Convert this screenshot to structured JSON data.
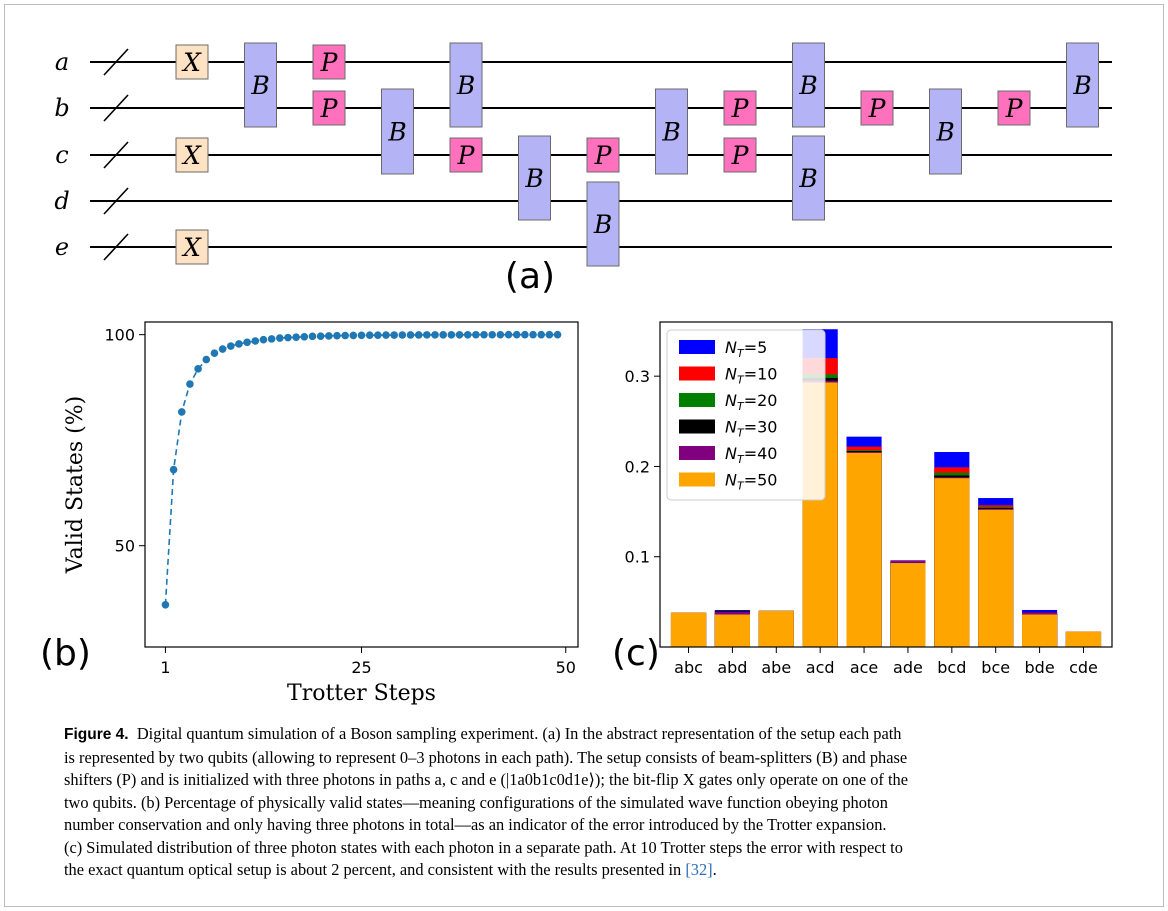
{
  "circuit": {
    "wires": [
      "a",
      "b",
      "c",
      "d",
      "e"
    ],
    "gates": [
      {
        "label": "X",
        "type": "bitflip",
        "wires": [
          "a"
        ],
        "step": 1
      },
      {
        "label": "X",
        "type": "bitflip",
        "wires": [
          "c"
        ],
        "step": 1
      },
      {
        "label": "X",
        "type": "bitflip",
        "wires": [
          "e"
        ],
        "step": 1
      },
      {
        "label": "B",
        "type": "beamsplitter",
        "wires": [
          "a",
          "b"
        ],
        "step": 2
      },
      {
        "label": "P",
        "type": "phase",
        "wires": [
          "a"
        ],
        "step": 3
      },
      {
        "label": "P",
        "type": "phase",
        "wires": [
          "b"
        ],
        "step": 3
      },
      {
        "label": "B",
        "type": "beamsplitter",
        "wires": [
          "b",
          "c"
        ],
        "step": 4
      },
      {
        "label": "B",
        "type": "beamsplitter",
        "wires": [
          "a",
          "b"
        ],
        "step": 5
      },
      {
        "label": "P",
        "type": "phase",
        "wires": [
          "c"
        ],
        "step": 5
      },
      {
        "label": "B",
        "type": "beamsplitter",
        "wires": [
          "c",
          "d"
        ],
        "step": 6
      },
      {
        "label": "P",
        "type": "phase",
        "wires": [
          "c"
        ],
        "step": 7
      },
      {
        "label": "B",
        "type": "beamsplitter",
        "wires": [
          "d",
          "e"
        ],
        "step": 7
      },
      {
        "label": "B",
        "type": "beamsplitter",
        "wires": [
          "b",
          "c"
        ],
        "step": 8
      },
      {
        "label": "P",
        "type": "phase",
        "wires": [
          "b"
        ],
        "step": 9
      },
      {
        "label": "P",
        "type": "phase",
        "wires": [
          "c"
        ],
        "step": 9
      },
      {
        "label": "B",
        "type": "beamsplitter",
        "wires": [
          "a",
          "b"
        ],
        "step": 10
      },
      {
        "label": "B",
        "type": "beamsplitter",
        "wires": [
          "c",
          "d"
        ],
        "step": 10
      },
      {
        "label": "P",
        "type": "phase",
        "wires": [
          "b"
        ],
        "step": 11
      },
      {
        "label": "B",
        "type": "beamsplitter",
        "wires": [
          "b",
          "c"
        ],
        "step": 12
      },
      {
        "label": "P",
        "type": "phase",
        "wires": [
          "b"
        ],
        "step": 13
      },
      {
        "label": "B",
        "type": "beamsplitter",
        "wires": [
          "a",
          "b"
        ],
        "step": 14
      }
    ],
    "gate_colors": {
      "bitflip": "#fde3c4",
      "beamsplitter": "#b3b3f5",
      "phase": "#ff70bd"
    }
  },
  "panel_labels": {
    "a": "(a)",
    "b": "(b)",
    "c": "(c)"
  },
  "chart_data": [
    {
      "type": "line",
      "style": "dashed line with circle markers",
      "color": "#1f77b4",
      "xlabel": "Trotter Steps",
      "ylabel": "Valid States (%)",
      "xticks": [
        1,
        25,
        50
      ],
      "yticks": [
        50,
        100
      ],
      "xlim": [
        -1.5,
        51.5
      ],
      "ylim": [
        26,
        103
      ],
      "x": [
        1,
        2,
        3,
        4,
        5,
        6,
        7,
        8,
        9,
        10,
        11,
        12,
        13,
        14,
        15,
        16,
        17,
        18,
        19,
        20,
        21,
        22,
        23,
        24,
        25,
        26,
        27,
        28,
        29,
        30,
        31,
        32,
        33,
        34,
        35,
        36,
        37,
        38,
        39,
        40,
        41,
        42,
        43,
        44,
        45,
        46,
        47,
        48,
        49
      ],
      "y": [
        36.0,
        68.0,
        81.7,
        88.3,
        91.9,
        94.1,
        95.6,
        96.6,
        97.3,
        97.8,
        98.2,
        98.5,
        98.8,
        99.0,
        99.2,
        99.3,
        99.4,
        99.5,
        99.6,
        99.65,
        99.7,
        99.75,
        99.8,
        99.82,
        99.85,
        99.87,
        99.88,
        99.9,
        99.91,
        99.92,
        99.93,
        99.94,
        99.95,
        99.95,
        99.96,
        99.96,
        99.97,
        99.97,
        99.98,
        99.98,
        99.98,
        99.98,
        99.99,
        99.99,
        99.99,
        99.99,
        99.99,
        99.99,
        100.0
      ]
    },
    {
      "type": "bar",
      "style": "overlaid bars, largest drawn behind",
      "categories": [
        "abc",
        "abd",
        "abe",
        "acd",
        "ace",
        "ade",
        "bcd",
        "bce",
        "bde",
        "cde"
      ],
      "yticks": [
        "0.1",
        "0.2",
        "0.3"
      ],
      "ylim": [
        0,
        0.36
      ],
      "legend_position": "top-left",
      "series": [
        {
          "name": "N_T=5",
          "label_main": "N",
          "label_sub": "T",
          "label_rest": "=5",
          "color": "#0000ff",
          "values": [
            0.038,
            0.041,
            0.04,
            0.352,
            0.233,
            0.096,
            0.216,
            0.165,
            0.041,
            0.017
          ]
        },
        {
          "name": "N_T=10",
          "label_main": "N",
          "label_sub": "T",
          "label_rest": "=10",
          "color": "#ff0000",
          "values": [
            0.038,
            0.04,
            0.04,
            0.32,
            0.222,
            0.095,
            0.199,
            0.157,
            0.038,
            0.017
          ]
        },
        {
          "name": "N_T=20",
          "label_main": "N",
          "label_sub": "T",
          "label_rest": "=20",
          "color": "#008000",
          "values": [
            0.038,
            0.04,
            0.04,
            0.302,
            0.218,
            0.094,
            0.193,
            0.155,
            0.037,
            0.017
          ]
        },
        {
          "name": "N_T=30",
          "label_main": "N",
          "label_sub": "T",
          "label_rest": "=30",
          "color": "#000000",
          "values": [
            0.038,
            0.04,
            0.04,
            0.298,
            0.217,
            0.094,
            0.19,
            0.154,
            0.037,
            0.017
          ]
        },
        {
          "name": "N_T=40",
          "label_main": "N",
          "label_sub": "T",
          "label_rest": "=40",
          "color": "#800080",
          "values": [
            0.038,
            0.039,
            0.04,
            0.295,
            0.216,
            0.094,
            0.188,
            0.153,
            0.037,
            0.017
          ]
        },
        {
          "name": "N_T=50",
          "label_main": "N",
          "label_sub": "T",
          "label_rest": "=50",
          "color": "#ffa500",
          "values": [
            0.038,
            0.036,
            0.04,
            0.293,
            0.215,
            0.093,
            0.187,
            0.152,
            0.036,
            0.017
          ]
        }
      ]
    }
  ],
  "caption": {
    "label": "Figure 4.",
    "lines": [
      "Digital quantum simulation of a Boson sampling experiment. (a) In the abstract representation of the setup each path",
      "is represented by two qubits (allowing to represent 0–3 photons in each path). The setup consists of beam-splitters (B) and phase",
      "shifters (P) and is initialized with three photons in paths a, c and e (|1a0b1c0d1e⟩); the bit-flip X gates only operate on one of the",
      "two qubits. (b) Percentage of physically valid states—meaning configurations of the simulated wave function obeying photon",
      "number conservation and only having three photons in total—as an indicator of the error introduced by the Trotter expansion.",
      "(c) Simulated distribution of three photon states with each photon in a separate path. At 10 Trotter steps the error with respect to"
    ],
    "last_line": "the exact quantum optical setup is about 2 percent, and consistent with the results presented in",
    "reference": "[32]",
    "last_line_end": "."
  }
}
